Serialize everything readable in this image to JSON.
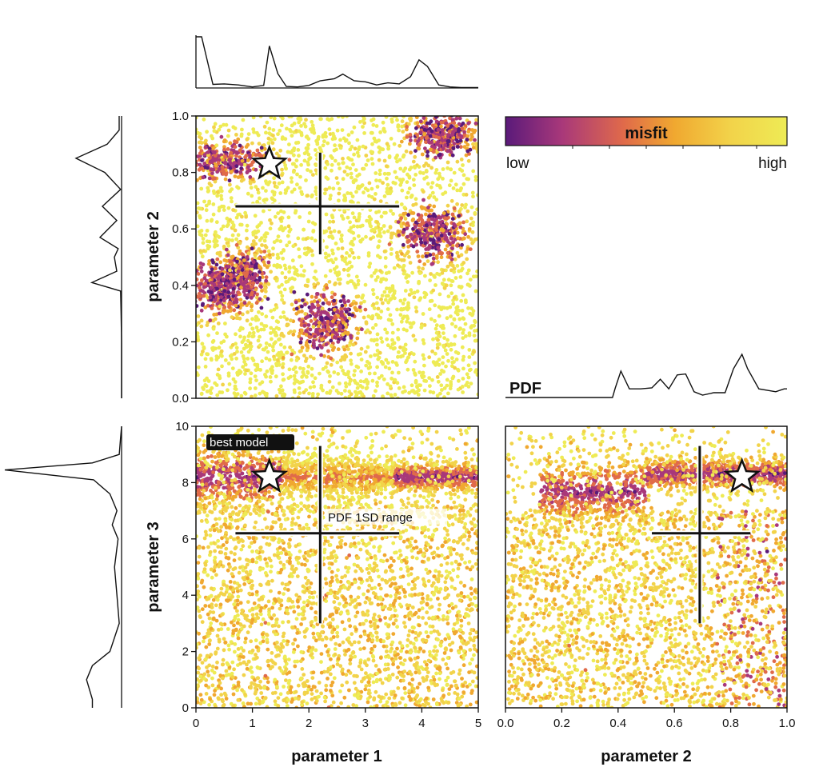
{
  "chart_data": [
    {
      "type": "scatter",
      "panel": "parameter 2 vs parameter 1",
      "xlabel": "",
      "ylabel": "parameter 2",
      "xlim": [
        0,
        5
      ],
      "ylim": [
        0,
        1
      ],
      "yticks": [
        "0.0",
        "0.2",
        "0.4",
        "0.6",
        "0.8",
        "1.0"
      ],
      "color_variable": "misfit",
      "low_misfit_clusters": [
        {
          "x": 0.4,
          "y": 0.39
        },
        {
          "x": 0.85,
          "y": 0.44
        },
        {
          "x": 2.3,
          "y": 0.27
        },
        {
          "x": 4.2,
          "y": 0.58
        },
        {
          "x": 4.35,
          "y": 0.93
        },
        {
          "x": 0.5,
          "y": 0.84
        }
      ],
      "best_model": {
        "x": 1.3,
        "y": 0.83
      },
      "pdf_1sd_cross": {
        "center": [
          2.2,
          0.68
        ],
        "x_range": [
          0.7,
          3.6
        ],
        "y_range": [
          0.51,
          0.87
        ]
      }
    },
    {
      "type": "scatter",
      "panel": "parameter 3 vs parameter 1",
      "xlabel": "parameter 1",
      "ylabel": "parameter 3",
      "xlim": [
        0,
        5
      ],
      "ylim": [
        0,
        10
      ],
      "xticks": [
        "0",
        "1",
        "2",
        "3",
        "4",
        "5"
      ],
      "yticks": [
        "0",
        "2",
        "4",
        "6",
        "8",
        "10"
      ],
      "color_variable": "misfit",
      "low_misfit_band": {
        "y": 8.2,
        "x_range": [
          0,
          5
        ]
      },
      "best_model": {
        "x": 1.3,
        "y": 8.2
      },
      "pdf_1sd_cross": {
        "center": [
          2.2,
          6.2
        ],
        "x_range": [
          0.7,
          3.6
        ],
        "y_range": [
          3.0,
          9.3
        ]
      }
    },
    {
      "type": "scatter",
      "panel": "parameter 3 vs parameter 2",
      "xlabel": "parameter 2",
      "ylabel": "",
      "xlim": [
        0,
        1
      ],
      "ylim": [
        0,
        10
      ],
      "xticks": [
        "0.0",
        "0.2",
        "0.4",
        "0.6",
        "0.8",
        "1.0"
      ],
      "color_variable": "misfit",
      "low_misfit_band": {
        "y": 7.9,
        "x_range": [
          0.1,
          1.0
        ]
      },
      "best_model": {
        "x": 0.84,
        "y": 8.2
      },
      "pdf_1sd_cross": {
        "center": [
          0.69,
          6.2
        ],
        "x_range": [
          0.52,
          0.87
        ],
        "y_range": [
          3.0,
          9.3
        ]
      }
    },
    {
      "type": "line",
      "panel": "marginal PDF parameter 1 (top)",
      "x": [
        0,
        0.1,
        0.3,
        0.5,
        0.75,
        1.0,
        1.2,
        1.3,
        1.45,
        1.6,
        1.8,
        2.0,
        2.2,
        2.45,
        2.6,
        2.8,
        3.0,
        3.2,
        3.4,
        3.6,
        3.8,
        3.95,
        4.1,
        4.3,
        4.5,
        4.7,
        5.0
      ],
      "y": [
        1.0,
        1.0,
        0.07,
        0.08,
        0.06,
        0.02,
        0.05,
        0.82,
        0.28,
        0.03,
        0.02,
        0.05,
        0.14,
        0.18,
        0.27,
        0.14,
        0.12,
        0.06,
        0.1,
        0.08,
        0.22,
        0.55,
        0.42,
        0.06,
        0.02,
        0.01,
        0.01
      ]
    },
    {
      "type": "line",
      "panel": "marginal PDF parameter 2 (left)",
      "y_param": [
        1.0,
        0.98,
        0.95,
        0.9,
        0.85,
        0.8,
        0.74,
        0.68,
        0.63,
        0.57,
        0.53,
        0.5,
        0.45,
        0.41,
        0.38,
        0.3,
        0.2,
        0.0
      ],
      "pdf": [
        0.05,
        0.05,
        0.05,
        0.3,
        0.95,
        0.35,
        0.02,
        0.4,
        0.1,
        0.45,
        0.07,
        0.15,
        0.1,
        0.62,
        0.02,
        0.01,
        0.0,
        0.0
      ]
    },
    {
      "type": "line",
      "panel": "marginal PDF parameter 3 (left)",
      "y_param": [
        10.0,
        9.5,
        9.0,
        8.7,
        8.45,
        8.1,
        7.6,
        7.0,
        6.5,
        6.0,
        5.0,
        4.0,
        3.0,
        2.0,
        1.5,
        1.0,
        0.3,
        0.0
      ],
      "pdf": [
        0.0,
        0.01,
        0.02,
        0.25,
        1.0,
        0.24,
        0.1,
        0.04,
        0.08,
        0.03,
        0.06,
        0.04,
        0.02,
        0.1,
        0.25,
        0.3,
        0.25,
        0.25
      ]
    },
    {
      "type": "line",
      "panel": "marginal PDF parameter 2 (PDF)",
      "label": "PDF",
      "x": [
        0.0,
        0.38,
        0.39,
        0.41,
        0.44,
        0.48,
        0.52,
        0.55,
        0.58,
        0.61,
        0.64,
        0.67,
        0.7,
        0.74,
        0.78,
        0.81,
        0.84,
        0.86,
        0.9,
        0.96,
        0.99,
        1.0
      ],
      "y": [
        0.0,
        0.0,
        0.2,
        0.55,
        0.18,
        0.18,
        0.2,
        0.38,
        0.18,
        0.47,
        0.49,
        0.12,
        0.05,
        0.1,
        0.1,
        0.6,
        0.9,
        0.6,
        0.18,
        0.12,
        0.18,
        0.18
      ]
    }
  ],
  "colorbar": {
    "title": "misfit",
    "low_label": "low",
    "high_label": "high",
    "colors": [
      "#5a1a7a",
      "#a8387a",
      "#e06a4a",
      "#f0a830",
      "#f2d34a",
      "#eeeb55"
    ]
  },
  "annotations": {
    "best_model": "best model",
    "pdf_range": "PDF 1SD range"
  }
}
